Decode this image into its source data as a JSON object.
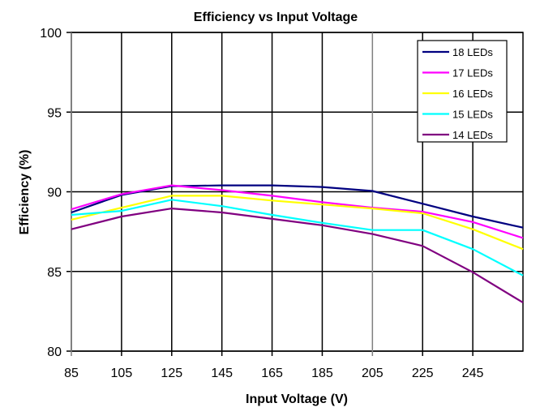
{
  "chart_data": {
    "type": "line",
    "title": "Efficiency vs Input Voltage",
    "xlabel": "Input Voltage (V)",
    "ylabel": "Efficiency (%)",
    "xlim": [
      85,
      265
    ],
    "ylim": [
      80,
      100
    ],
    "x_ticks": [
      "85",
      "105",
      "125",
      "145",
      "165",
      "185",
      "205",
      "225",
      "245"
    ],
    "y_ticks": [
      "80",
      "85",
      "90",
      "95",
      "100"
    ],
    "grid": true,
    "legend_position": "top-right",
    "x": [
      85,
      105,
      125,
      145,
      165,
      185,
      205,
      225,
      245,
      265
    ],
    "series": [
      {
        "name": "18 LEDs",
        "color": "#000080",
        "values": [
          88.7,
          89.8,
          90.35,
          90.4,
          90.4,
          90.3,
          90.05,
          89.25,
          88.45,
          87.75
        ]
      },
      {
        "name": "17 LEDs",
        "color": "#ff00ff",
        "values": [
          88.9,
          89.85,
          90.4,
          90.1,
          89.75,
          89.35,
          89.0,
          88.75,
          88.1,
          87.1
        ]
      },
      {
        "name": "16 LEDs",
        "color": "#ffff00",
        "values": [
          88.25,
          89.0,
          89.75,
          89.75,
          89.45,
          89.2,
          88.95,
          88.65,
          87.65,
          86.4
        ]
      },
      {
        "name": "15 LEDs",
        "color": "#00ffff",
        "values": [
          88.55,
          88.8,
          89.5,
          89.1,
          88.55,
          88.05,
          87.6,
          87.6,
          86.4,
          84.75
        ]
      },
      {
        "name": "14 LEDs",
        "color": "#800080",
        "values": [
          87.65,
          88.45,
          88.95,
          88.7,
          88.3,
          87.9,
          87.35,
          86.6,
          84.95,
          83.05
        ]
      }
    ]
  }
}
